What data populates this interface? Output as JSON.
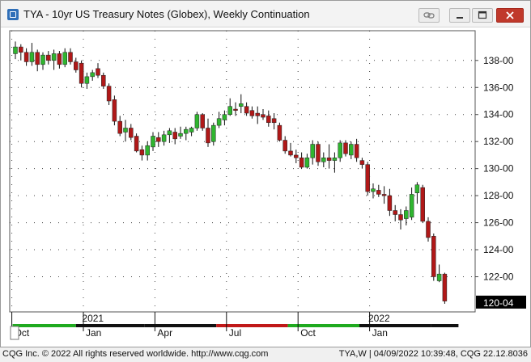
{
  "window": {
    "title": "TYA - 10yr US Treasury Notes (Globex), Weekly Continuation",
    "icons": [
      "chart-app-icon",
      "link-icon",
      "minimize-icon",
      "maximize-icon",
      "close-icon"
    ]
  },
  "footer": {
    "copyright": "CQG Inc. © 2022 All rights reserved worldwide. http://www.cqg.com",
    "status": "TYA,W | 04/09/2022 10:39:48, CQG 22.12.8036"
  },
  "chart_data": {
    "type": "candlestick",
    "title": "",
    "xlabel": "",
    "ylabel": "",
    "ylim": [
      119.4,
      140.2
    ],
    "yticks": [
      "122-00",
      "124-00",
      "126-00",
      "128-00",
      "130-00",
      "132-00",
      "134-00",
      "136-00",
      "138-00"
    ],
    "last_price_label": "120-04",
    "years": [
      {
        "label": "2021",
        "index": 13
      },
      {
        "label": "2022",
        "index": 65
      }
    ],
    "month_ticks": [
      {
        "label": "Oct",
        "index": 0
      },
      {
        "label": "Jan",
        "index": 13
      },
      {
        "label": "Apr",
        "index": 26
      },
      {
        "label": "Jul",
        "index": 39
      },
      {
        "label": "Oct",
        "index": 52
      },
      {
        "label": "Jan",
        "index": 65
      }
    ],
    "grid": true,
    "colors": {
      "up": "#2fb52f",
      "down": "#b01818",
      "wick": "#111111",
      "bar_green": "#1faa1f",
      "bar_red": "#c01818",
      "bar_black": "#111111",
      "label_bg": "#000000",
      "label_fg": "#ffffff"
    },
    "session_bar": [
      {
        "from": 0,
        "to": 11.5,
        "color": "green"
      },
      {
        "from": 11.5,
        "to": 24,
        "color": "black"
      },
      {
        "from": 24,
        "to": 37,
        "color": "black"
      },
      {
        "from": 37,
        "to": 50,
        "color": "red"
      },
      {
        "from": 50,
        "to": 63,
        "color": "green"
      },
      {
        "from": 63,
        "to": 76,
        "color": "black"
      },
      {
        "from": 76,
        "to": 81,
        "color": "black"
      }
    ],
    "candles": [
      {
        "o": 138.5,
        "h": 139.4,
        "l": 138.1,
        "c": 139.0
      },
      {
        "o": 139.0,
        "h": 139.2,
        "l": 138.0,
        "c": 138.6
      },
      {
        "o": 138.6,
        "h": 138.9,
        "l": 137.6,
        "c": 137.9
      },
      {
        "o": 137.9,
        "h": 139.3,
        "l": 137.6,
        "c": 138.6
      },
      {
        "o": 138.6,
        "h": 138.8,
        "l": 137.2,
        "c": 137.7
      },
      {
        "o": 137.7,
        "h": 138.6,
        "l": 137.3,
        "c": 138.4
      },
      {
        "o": 138.4,
        "h": 138.7,
        "l": 137.7,
        "c": 138.0
      },
      {
        "o": 138.0,
        "h": 138.8,
        "l": 137.3,
        "c": 138.5
      },
      {
        "o": 138.5,
        "h": 138.7,
        "l": 137.4,
        "c": 137.7
      },
      {
        "o": 137.7,
        "h": 138.9,
        "l": 137.5,
        "c": 138.6
      },
      {
        "o": 138.6,
        "h": 138.9,
        "l": 137.7,
        "c": 137.9
      },
      {
        "o": 137.9,
        "h": 138.2,
        "l": 137.1,
        "c": 137.3
      },
      {
        "o": 137.8,
        "h": 138.0,
        "l": 136.0,
        "c": 136.3
      },
      {
        "o": 136.3,
        "h": 137.1,
        "l": 135.9,
        "c": 136.8
      },
      {
        "o": 136.8,
        "h": 137.3,
        "l": 136.5,
        "c": 137.1
      },
      {
        "o": 137.4,
        "h": 137.8,
        "l": 136.7,
        "c": 136.9
      },
      {
        "o": 136.9,
        "h": 137.1,
        "l": 135.9,
        "c": 136.1
      },
      {
        "o": 136.1,
        "h": 136.3,
        "l": 134.7,
        "c": 135.0
      },
      {
        "o": 135.1,
        "h": 135.4,
        "l": 133.2,
        "c": 133.5
      },
      {
        "o": 133.5,
        "h": 133.9,
        "l": 132.4,
        "c": 132.6
      },
      {
        "o": 132.7,
        "h": 133.6,
        "l": 132.0,
        "c": 133.0
      },
      {
        "o": 133.0,
        "h": 133.3,
        "l": 132.1,
        "c": 132.3
      },
      {
        "o": 132.4,
        "h": 132.6,
        "l": 131.2,
        "c": 131.3
      },
      {
        "o": 131.4,
        "h": 131.7,
        "l": 130.6,
        "c": 131.0
      },
      {
        "o": 131.0,
        "h": 132.0,
        "l": 130.6,
        "c": 131.7
      },
      {
        "o": 131.6,
        "h": 132.7,
        "l": 131.3,
        "c": 132.4
      },
      {
        "o": 132.3,
        "h": 132.7,
        "l": 131.6,
        "c": 132.0
      },
      {
        "o": 132.0,
        "h": 132.8,
        "l": 131.7,
        "c": 132.5
      },
      {
        "o": 132.5,
        "h": 133.0,
        "l": 131.9,
        "c": 132.8
      },
      {
        "o": 132.7,
        "h": 133.0,
        "l": 131.8,
        "c": 132.2
      },
      {
        "o": 132.4,
        "h": 133.1,
        "l": 132.2,
        "c": 132.6
      },
      {
        "o": 132.6,
        "h": 133.1,
        "l": 132.1,
        "c": 132.9
      },
      {
        "o": 132.7,
        "h": 133.1,
        "l": 132.4,
        "c": 133.0
      },
      {
        "o": 133.0,
        "h": 134.2,
        "l": 132.8,
        "c": 134.0
      },
      {
        "o": 134.0,
        "h": 134.1,
        "l": 132.8,
        "c": 133.0
      },
      {
        "o": 133.0,
        "h": 133.7,
        "l": 131.6,
        "c": 131.9
      },
      {
        "o": 132.0,
        "h": 133.4,
        "l": 131.7,
        "c": 133.2
      },
      {
        "o": 133.2,
        "h": 134.2,
        "l": 133.0,
        "c": 133.7
      },
      {
        "o": 133.6,
        "h": 134.3,
        "l": 133.2,
        "c": 134.0
      },
      {
        "o": 134.0,
        "h": 135.2,
        "l": 133.9,
        "c": 134.6
      },
      {
        "o": 134.4,
        "h": 134.9,
        "l": 133.9,
        "c": 134.3
      },
      {
        "o": 134.6,
        "h": 135.5,
        "l": 134.1,
        "c": 134.8
      },
      {
        "o": 134.6,
        "h": 134.9,
        "l": 133.9,
        "c": 134.1
      },
      {
        "o": 134.3,
        "h": 134.6,
        "l": 133.7,
        "c": 133.9
      },
      {
        "o": 134.1,
        "h": 134.6,
        "l": 133.3,
        "c": 133.9
      },
      {
        "o": 134.0,
        "h": 134.4,
        "l": 133.6,
        "c": 133.8
      },
      {
        "o": 133.9,
        "h": 134.3,
        "l": 133.1,
        "c": 133.4
      },
      {
        "o": 133.7,
        "h": 134.1,
        "l": 132.9,
        "c": 133.4
      },
      {
        "o": 133.2,
        "h": 133.4,
        "l": 132.0,
        "c": 132.1
      },
      {
        "o": 132.1,
        "h": 132.4,
        "l": 131.1,
        "c": 131.3
      },
      {
        "o": 131.3,
        "h": 131.9,
        "l": 130.9,
        "c": 131.0
      },
      {
        "o": 131.0,
        "h": 131.4,
        "l": 130.4,
        "c": 130.8
      },
      {
        "o": 130.8,
        "h": 131.2,
        "l": 130.0,
        "c": 130.1
      },
      {
        "o": 130.1,
        "h": 131.1,
        "l": 130.0,
        "c": 130.8
      },
      {
        "o": 130.8,
        "h": 132.1,
        "l": 130.3,
        "c": 131.8
      },
      {
        "o": 131.8,
        "h": 132.0,
        "l": 130.2,
        "c": 130.5
      },
      {
        "o": 130.5,
        "h": 131.2,
        "l": 130.1,
        "c": 130.8
      },
      {
        "o": 130.8,
        "h": 131.8,
        "l": 130.0,
        "c": 130.6
      },
      {
        "o": 130.6,
        "h": 131.2,
        "l": 129.7,
        "c": 130.8
      },
      {
        "o": 130.8,
        "h": 132.1,
        "l": 130.5,
        "c": 131.9
      },
      {
        "o": 131.9,
        "h": 132.1,
        "l": 130.9,
        "c": 131.1
      },
      {
        "o": 131.0,
        "h": 132.0,
        "l": 130.7,
        "c": 131.8
      },
      {
        "o": 131.8,
        "h": 132.2,
        "l": 130.5,
        "c": 130.8
      },
      {
        "o": 130.6,
        "h": 130.8,
        "l": 130.0,
        "c": 130.3
      },
      {
        "o": 130.3,
        "h": 130.5,
        "l": 128.0,
        "c": 128.3
      },
      {
        "o": 128.3,
        "h": 128.9,
        "l": 127.8,
        "c": 128.5
      },
      {
        "o": 128.4,
        "h": 128.8,
        "l": 127.9,
        "c": 128.1
      },
      {
        "o": 128.1,
        "h": 128.7,
        "l": 127.4,
        "c": 128.0
      },
      {
        "o": 128.0,
        "h": 128.5,
        "l": 126.5,
        "c": 126.9
      },
      {
        "o": 126.9,
        "h": 127.3,
        "l": 126.1,
        "c": 126.6
      },
      {
        "o": 126.6,
        "h": 127.0,
        "l": 125.5,
        "c": 126.2
      },
      {
        "o": 126.3,
        "h": 127.2,
        "l": 125.8,
        "c": 126.9
      },
      {
        "o": 126.4,
        "h": 128.6,
        "l": 126.2,
        "c": 128.1
      },
      {
        "o": 128.2,
        "h": 129.0,
        "l": 127.4,
        "c": 128.8
      },
      {
        "o": 128.6,
        "h": 128.8,
        "l": 126.0,
        "c": 126.1
      },
      {
        "o": 126.1,
        "h": 126.4,
        "l": 124.6,
        "c": 124.9
      },
      {
        "o": 125.0,
        "h": 125.2,
        "l": 121.7,
        "c": 122.0
      },
      {
        "o": 121.7,
        "h": 122.9,
        "l": 121.6,
        "c": 122.2
      },
      {
        "o": 122.2,
        "h": 122.3,
        "l": 120.0,
        "c": 120.2
      }
    ]
  }
}
